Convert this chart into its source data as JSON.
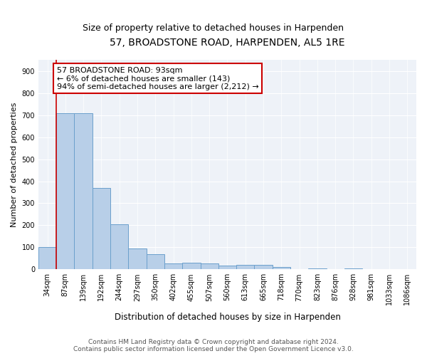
{
  "title": "57, BROADSTONE ROAD, HARPENDEN, AL5 1RE",
  "subtitle": "Size of property relative to detached houses in Harpenden",
  "xlabel": "Distribution of detached houses by size in Harpenden",
  "ylabel": "Number of detached properties",
  "categories": [
    "34sqm",
    "87sqm",
    "139sqm",
    "192sqm",
    "244sqm",
    "297sqm",
    "350sqm",
    "402sqm",
    "455sqm",
    "507sqm",
    "560sqm",
    "613sqm",
    "665sqm",
    "718sqm",
    "770sqm",
    "823sqm",
    "876sqm",
    "928sqm",
    "981sqm",
    "1033sqm",
    "1086sqm"
  ],
  "values": [
    100,
    710,
    710,
    370,
    205,
    95,
    70,
    28,
    30,
    28,
    17,
    20,
    20,
    10,
    0,
    5,
    0,
    5,
    0,
    0,
    0
  ],
  "bar_color": "#b8cfe8",
  "bar_edge_color": "#6ba0cc",
  "annotation_line1": "57 BROADSTONE ROAD: 93sqm",
  "annotation_line2": "← 6% of detached houses are smaller (143)",
  "annotation_line3": "94% of semi-detached houses are larger (2,212) →",
  "annotation_box_color": "#cc0000",
  "property_line_color": "#cc0000",
  "ylim": [
    0,
    950
  ],
  "yticks": [
    0,
    100,
    200,
    300,
    400,
    500,
    600,
    700,
    800,
    900
  ],
  "background_color": "#eef2f8",
  "footer_line1": "Contains HM Land Registry data © Crown copyright and database right 2024.",
  "footer_line2": "Contains public sector information licensed under the Open Government Licence v3.0.",
  "title_fontsize": 10,
  "subtitle_fontsize": 9,
  "xlabel_fontsize": 8.5,
  "ylabel_fontsize": 8,
  "tick_fontsize": 7,
  "footer_fontsize": 6.5,
  "annotation_fontsize": 8
}
